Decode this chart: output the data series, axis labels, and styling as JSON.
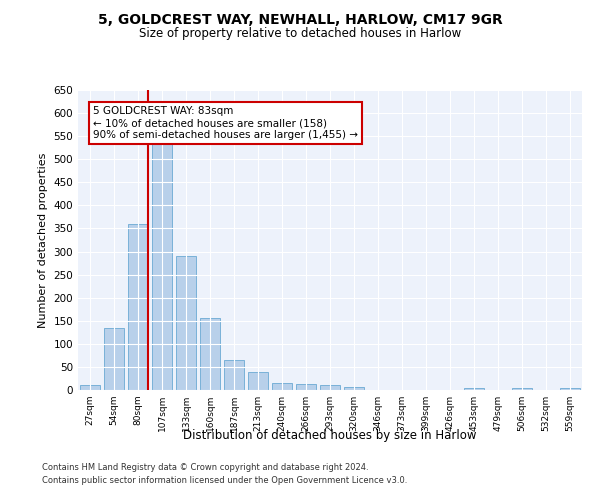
{
  "title1": "5, GOLDCREST WAY, NEWHALL, HARLOW, CM17 9GR",
  "title2": "Size of property relative to detached houses in Harlow",
  "xlabel": "Distribution of detached houses by size in Harlow",
  "ylabel": "Number of detached properties",
  "bar_labels": [
    "27sqm",
    "54sqm",
    "80sqm",
    "107sqm",
    "133sqm",
    "160sqm",
    "187sqm",
    "213sqm",
    "240sqm",
    "266sqm",
    "293sqm",
    "320sqm",
    "346sqm",
    "373sqm",
    "399sqm",
    "426sqm",
    "453sqm",
    "479sqm",
    "506sqm",
    "532sqm",
    "559sqm"
  ],
  "bar_values": [
    10,
    135,
    360,
    535,
    290,
    157,
    65,
    38,
    16,
    14,
    10,
    7,
    0,
    0,
    0,
    0,
    5,
    0,
    5,
    0,
    5
  ],
  "bar_color": "#b8d0ea",
  "bar_edge_color": "#6aaad4",
  "vline_x": 2.42,
  "vline_color": "#cc0000",
  "annotation_text": "5 GOLDCREST WAY: 83sqm\n← 10% of detached houses are smaller (158)\n90% of semi-detached houses are larger (1,455) →",
  "annotation_box_color": "#ffffff",
  "annotation_box_edge": "#cc0000",
  "ylim": [
    0,
    650
  ],
  "yticks": [
    0,
    50,
    100,
    150,
    200,
    250,
    300,
    350,
    400,
    450,
    500,
    550,
    600,
    650
  ],
  "background_color": "#edf2fb",
  "footer1": "Contains HM Land Registry data © Crown copyright and database right 2024.",
  "footer2": "Contains public sector information licensed under the Open Government Licence v3.0."
}
